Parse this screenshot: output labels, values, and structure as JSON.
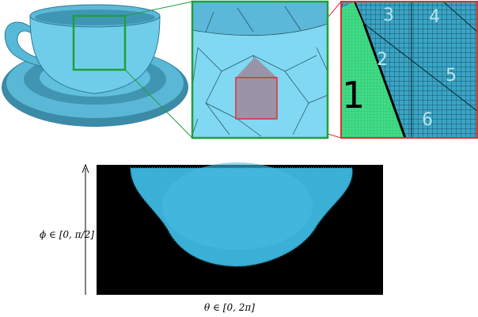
{
  "zoom_regions": {
    "labels": [
      "1",
      "2",
      "3",
      "4",
      "5",
      "6"
    ]
  },
  "parameter_plot": {
    "y_label": "ϕ ∈ [0, π/2]",
    "x_label": "θ ∈ [0, 2π]"
  }
}
